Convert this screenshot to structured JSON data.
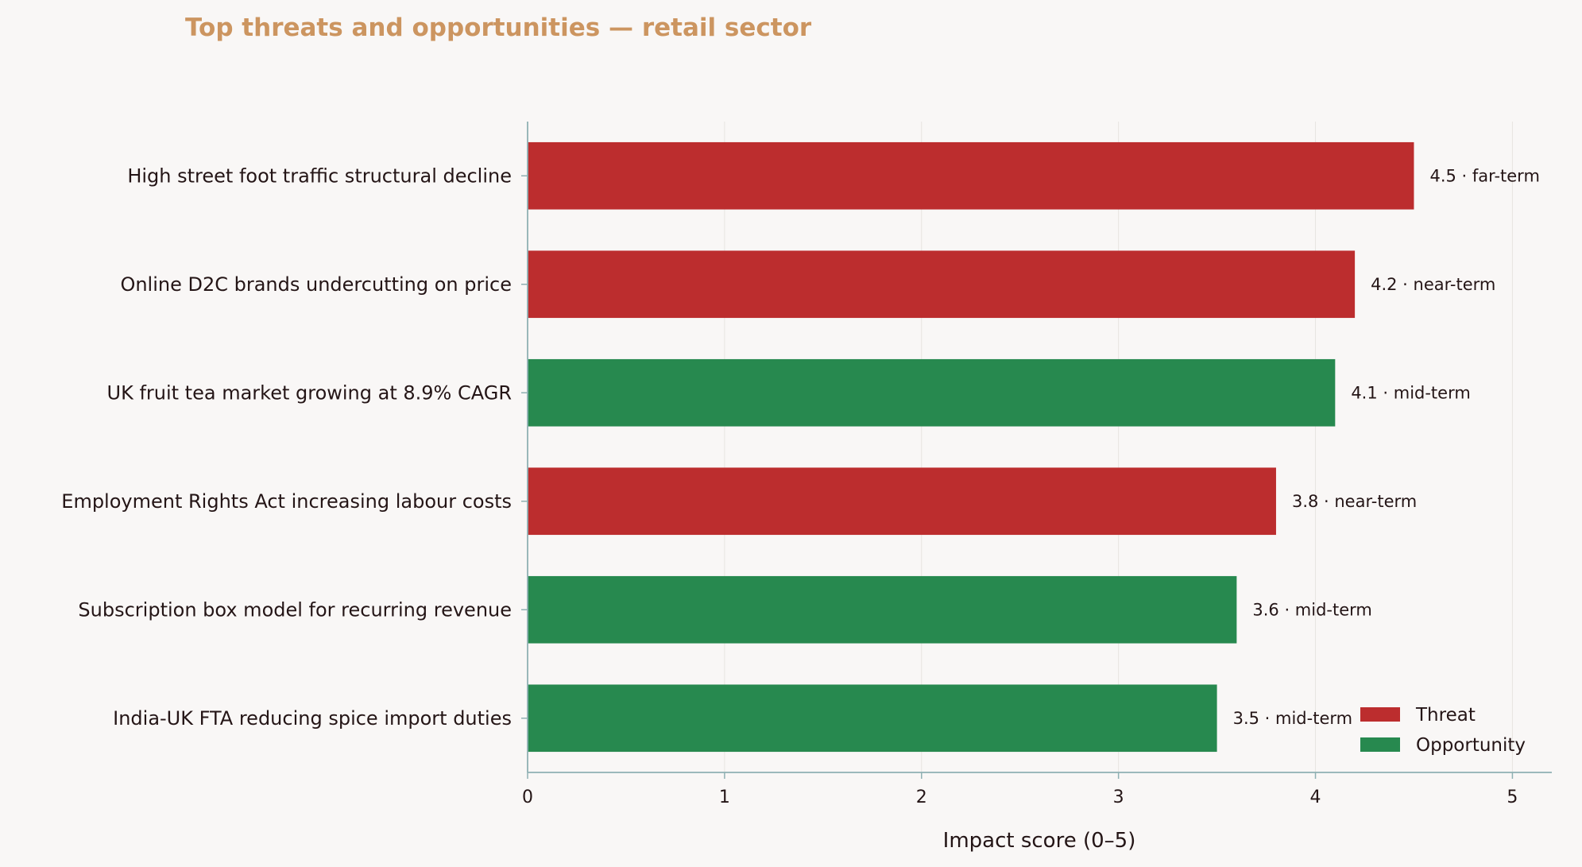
{
  "chart_data": {
    "type": "bar",
    "orientation": "horizontal",
    "title": "Top threats and opportunities — retail sector",
    "xlabel": "Impact score (0–5)",
    "ylabel": "",
    "xlim": [
      0,
      5.2
    ],
    "xticks": [
      0,
      1,
      2,
      3,
      4,
      5
    ],
    "grid": "vertical",
    "legend_position": "bottom-right",
    "colors": {
      "Threat": "#bc2d2e",
      "Opportunity": "#27894f",
      "axis": "#8fb0b3",
      "grid": "#e8e4e1"
    },
    "categories": [
      "High street foot traffic structural decline",
      "Online D2C brands undercutting on price",
      "UK fruit tea market growing at 8.9% CAGR",
      "Employment Rights Act increasing labour costs",
      "Subscription box model for recurring revenue",
      "India-UK FTA reducing spice import duties"
    ],
    "values": [
      4.5,
      4.2,
      4.1,
      3.8,
      3.6,
      3.5
    ],
    "kinds": [
      "Threat",
      "Threat",
      "Opportunity",
      "Threat",
      "Opportunity",
      "Opportunity"
    ],
    "horizons": [
      "far-term",
      "near-term",
      "mid-term",
      "near-term",
      "mid-term",
      "mid-term"
    ],
    "legend": [
      "Threat",
      "Opportunity"
    ]
  }
}
